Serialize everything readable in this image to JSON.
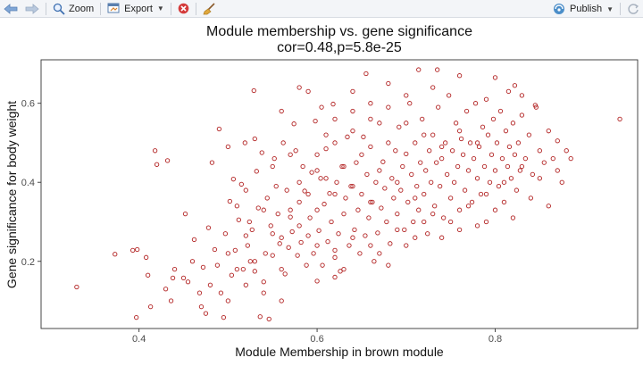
{
  "toolbar": {
    "zoom_label": "Zoom",
    "export_label": "Export",
    "publish_label": "Publish",
    "icons": [
      "back-arrow-icon",
      "forward-arrow-icon",
      "zoom-icon",
      "export-icon",
      "remove-plot-icon",
      "clear-plots-broom-icon",
      "publish-icon",
      "refresh-icon"
    ]
  },
  "colors": {
    "points": "#b22222",
    "panel_border": "#333333",
    "ticks": "#4d4d4d"
  },
  "chart_data": {
    "type": "scatter",
    "title": "Module membership vs. gene significance",
    "subtitle": "cor=0.48,p=5.8e-25",
    "xlabel": "Module Membership in brown module",
    "ylabel": "Gene significance for body weight",
    "xlim": [
      0.29,
      0.96
    ],
    "ylim": [
      0.03,
      0.71
    ],
    "xticks": [
      0.4,
      0.6,
      0.8
    ],
    "xtick_labels": [
      "0.4",
      "0.6",
      "0.8"
    ],
    "yticks": [
      0.2,
      0.4,
      0.6
    ],
    "ytick_labels": [
      "0.2",
      "0.4",
      "0.6"
    ],
    "grid": false,
    "marker": "open-circle",
    "points": [
      [
        0.33,
        0.135
      ],
      [
        0.373,
        0.218
      ],
      [
        0.393,
        0.228
      ],
      [
        0.397,
        0.058
      ],
      [
        0.398,
        0.23
      ],
      [
        0.408,
        0.21
      ],
      [
        0.41,
        0.165
      ],
      [
        0.413,
        0.085
      ],
      [
        0.418,
        0.48
      ],
      [
        0.42,
        0.445
      ],
      [
        0.43,
        0.13
      ],
      [
        0.432,
        0.455
      ],
      [
        0.436,
        0.1
      ],
      [
        0.438,
        0.158
      ],
      [
        0.45,
        0.158
      ],
      [
        0.452,
        0.32
      ],
      [
        0.455,
        0.148
      ],
      [
        0.462,
        0.255
      ],
      [
        0.468,
        0.12
      ],
      [
        0.47,
        0.085
      ],
      [
        0.472,
        0.185
      ],
      [
        0.475,
        0.068
      ],
      [
        0.478,
        0.285
      ],
      [
        0.482,
        0.45
      ],
      [
        0.485,
        0.23
      ],
      [
        0.488,
        0.19
      ],
      [
        0.49,
        0.535
      ],
      [
        0.492,
        0.12
      ],
      [
        0.495,
        0.058
      ],
      [
        0.497,
        0.27
      ],
      [
        0.5,
        0.49
      ],
      [
        0.502,
        0.352
      ],
      [
        0.504,
        0.165
      ],
      [
        0.506,
        0.408
      ],
      [
        0.508,
        0.228
      ],
      [
        0.51,
        0.34
      ],
      [
        0.512,
        0.305
      ],
      [
        0.515,
        0.395
      ],
      [
        0.517,
        0.18
      ],
      [
        0.519,
        0.5
      ],
      [
        0.52,
        0.265
      ],
      [
        0.522,
        0.24
      ],
      [
        0.524,
        0.3
      ],
      [
        0.525,
        0.2
      ],
      [
        0.527,
        0.28
      ],
      [
        0.529,
        0.632
      ],
      [
        0.53,
        0.175
      ],
      [
        0.532,
        0.428
      ],
      [
        0.534,
        0.335
      ],
      [
        0.536,
        0.06
      ],
      [
        0.538,
        0.475
      ],
      [
        0.54,
        0.148
      ],
      [
        0.542,
        0.22
      ],
      [
        0.544,
        0.36
      ],
      [
        0.546,
        0.054
      ],
      [
        0.548,
        0.29
      ],
      [
        0.55,
        0.215
      ],
      [
        0.552,
        0.46
      ],
      [
        0.554,
        0.39
      ],
      [
        0.556,
        0.32
      ],
      [
        0.558,
        0.245
      ],
      [
        0.56,
        0.18
      ],
      [
        0.562,
        0.5
      ],
      [
        0.564,
        0.168
      ],
      [
        0.566,
        0.38
      ],
      [
        0.568,
        0.235
      ],
      [
        0.57,
        0.312
      ],
      [
        0.572,
        0.275
      ],
      [
        0.574,
        0.548
      ],
      [
        0.576,
        0.48
      ],
      [
        0.578,
        0.215
      ],
      [
        0.58,
        0.35
      ],
      [
        0.582,
        0.248
      ],
      [
        0.584,
        0.44
      ],
      [
        0.586,
        0.378
      ],
      [
        0.588,
        0.19
      ],
      [
        0.59,
        0.265
      ],
      [
        0.592,
        0.31
      ],
      [
        0.594,
        0.425
      ],
      [
        0.596,
        0.22
      ],
      [
        0.598,
        0.555
      ],
      [
        0.6,
        0.33
      ],
      [
        0.602,
        0.278
      ],
      [
        0.604,
        0.41
      ],
      [
        0.606,
        0.19
      ],
      [
        0.608,
        0.345
      ],
      [
        0.61,
        0.485
      ],
      [
        0.612,
        0.25
      ],
      [
        0.614,
        0.372
      ],
      [
        0.616,
        0.3
      ],
      [
        0.618,
        0.598
      ],
      [
        0.62,
        0.228
      ],
      [
        0.622,
        0.4
      ],
      [
        0.624,
        0.27
      ],
      [
        0.626,
        0.175
      ],
      [
        0.628,
        0.44
      ],
      [
        0.63,
        0.32
      ],
      [
        0.632,
        0.36
      ],
      [
        0.634,
        0.515
      ],
      [
        0.636,
        0.24
      ],
      [
        0.638,
        0.39
      ],
      [
        0.64,
        0.58
      ],
      [
        0.642,
        0.28
      ],
      [
        0.644,
        0.45
      ],
      [
        0.646,
        0.33
      ],
      [
        0.648,
        0.22
      ],
      [
        0.65,
        0.37
      ],
      [
        0.652,
        0.515
      ],
      [
        0.654,
        0.265
      ],
      [
        0.656,
        0.42
      ],
      [
        0.658,
        0.31
      ],
      [
        0.66,
        0.49
      ],
      [
        0.662,
        0.35
      ],
      [
        0.664,
        0.2
      ],
      [
        0.666,
        0.4
      ],
      [
        0.668,
        0.272
      ],
      [
        0.67,
        0.55
      ],
      [
        0.672,
        0.335
      ],
      [
        0.674,
        0.452
      ],
      [
        0.676,
        0.385
      ],
      [
        0.678,
        0.3
      ],
      [
        0.68,
        0.5
      ],
      [
        0.682,
        0.245
      ],
      [
        0.684,
        0.41
      ],
      [
        0.686,
        0.36
      ],
      [
        0.688,
        0.48
      ],
      [
        0.69,
        0.32
      ],
      [
        0.692,
        0.54
      ],
      [
        0.694,
        0.38
      ],
      [
        0.696,
        0.44
      ],
      [
        0.698,
        0.28
      ],
      [
        0.7,
        0.472
      ],
      [
        0.702,
        0.35
      ],
      [
        0.704,
        0.6
      ],
      [
        0.706,
        0.42
      ],
      [
        0.708,
        0.3
      ],
      [
        0.71,
        0.5
      ],
      [
        0.712,
        0.39
      ],
      [
        0.714,
        0.33
      ],
      [
        0.716,
        0.45
      ],
      [
        0.718,
        0.56
      ],
      [
        0.72,
        0.37
      ],
      [
        0.722,
        0.43
      ],
      [
        0.724,
        0.27
      ],
      [
        0.726,
        0.48
      ],
      [
        0.728,
        0.4
      ],
      [
        0.73,
        0.52
      ],
      [
        0.732,
        0.34
      ],
      [
        0.734,
        0.45
      ],
      [
        0.736,
        0.59
      ],
      [
        0.738,
        0.39
      ],
      [
        0.74,
        0.46
      ],
      [
        0.742,
        0.31
      ],
      [
        0.744,
        0.5
      ],
      [
        0.746,
        0.42
      ],
      [
        0.748,
        0.62
      ],
      [
        0.75,
        0.36
      ],
      [
        0.752,
        0.48
      ],
      [
        0.754,
        0.4
      ],
      [
        0.756,
        0.55
      ],
      [
        0.758,
        0.44
      ],
      [
        0.76,
        0.33
      ],
      [
        0.762,
        0.51
      ],
      [
        0.764,
        0.47
      ],
      [
        0.766,
        0.38
      ],
      [
        0.768,
        0.58
      ],
      [
        0.77,
        0.43
      ],
      [
        0.772,
        0.5
      ],
      [
        0.774,
        0.35
      ],
      [
        0.776,
        0.46
      ],
      [
        0.778,
        0.6
      ],
      [
        0.78,
        0.41
      ],
      [
        0.782,
        0.49
      ],
      [
        0.784,
        0.37
      ],
      [
        0.786,
        0.54
      ],
      [
        0.788,
        0.44
      ],
      [
        0.79,
        0.3
      ],
      [
        0.792,
        0.52
      ],
      [
        0.794,
        0.4
      ],
      [
        0.796,
        0.47
      ],
      [
        0.798,
        0.56
      ],
      [
        0.8,
        0.43
      ],
      [
        0.802,
        0.5
      ],
      [
        0.804,
        0.39
      ],
      [
        0.806,
        0.58
      ],
      [
        0.808,
        0.46
      ],
      [
        0.81,
        0.35
      ],
      [
        0.812,
        0.53
      ],
      [
        0.814,
        0.44
      ],
      [
        0.816,
        0.49
      ],
      [
        0.818,
        0.41
      ],
      [
        0.82,
        0.55
      ],
      [
        0.822,
        0.47
      ],
      [
        0.824,
        0.38
      ],
      [
        0.826,
        0.5
      ],
      [
        0.828,
        0.43
      ],
      [
        0.83,
        0.57
      ],
      [
        0.834,
        0.46
      ],
      [
        0.838,
        0.52
      ],
      [
        0.842,
        0.42
      ],
      [
        0.846,
        0.59
      ],
      [
        0.85,
        0.48
      ],
      [
        0.855,
        0.45
      ],
      [
        0.86,
        0.53
      ],
      [
        0.865,
        0.46
      ],
      [
        0.87,
        0.505
      ],
      [
        0.875,
        0.4
      ],
      [
        0.88,
        0.48
      ],
      [
        0.885,
        0.46
      ],
      [
        0.94,
        0.56
      ],
      [
        0.655,
        0.675
      ],
      [
        0.714,
        0.685
      ],
      [
        0.735,
        0.685
      ],
      [
        0.8,
        0.665
      ],
      [
        0.822,
        0.645
      ],
      [
        0.64,
        0.63
      ],
      [
        0.59,
        0.63
      ],
      [
        0.845,
        0.595
      ],
      [
        0.83,
        0.62
      ],
      [
        0.605,
        0.59
      ],
      [
        0.815,
        0.63
      ],
      [
        0.68,
        0.65
      ],
      [
        0.76,
        0.67
      ],
      [
        0.7,
        0.62
      ],
      [
        0.58,
        0.64
      ],
      [
        0.66,
        0.6
      ],
      [
        0.73,
        0.64
      ],
      [
        0.79,
        0.61
      ],
      [
        0.62,
        0.56
      ],
      [
        0.56,
        0.58
      ],
      [
        0.61,
        0.52
      ],
      [
        0.57,
        0.47
      ],
      [
        0.55,
        0.44
      ],
      [
        0.53,
        0.51
      ],
      [
        0.52,
        0.38
      ],
      [
        0.54,
        0.33
      ],
      [
        0.56,
        0.26
      ],
      [
        0.58,
        0.29
      ],
      [
        0.6,
        0.24
      ],
      [
        0.62,
        0.21
      ],
      [
        0.63,
        0.18
      ],
      [
        0.64,
        0.26
      ],
      [
        0.66,
        0.24
      ],
      [
        0.67,
        0.22
      ],
      [
        0.68,
        0.19
      ],
      [
        0.69,
        0.28
      ],
      [
        0.7,
        0.24
      ],
      [
        0.71,
        0.26
      ],
      [
        0.72,
        0.3
      ],
      [
        0.74,
        0.26
      ],
      [
        0.76,
        0.28
      ],
      [
        0.78,
        0.29
      ],
      [
        0.8,
        0.33
      ],
      [
        0.82,
        0.31
      ],
      [
        0.84,
        0.36
      ],
      [
        0.86,
        0.34
      ],
      [
        0.52,
        0.14
      ],
      [
        0.54,
        0.12
      ],
      [
        0.56,
        0.1
      ],
      [
        0.6,
        0.15
      ],
      [
        0.62,
        0.16
      ],
      [
        0.5,
        0.1
      ],
      [
        0.48,
        0.14
      ],
      [
        0.46,
        0.2
      ],
      [
        0.44,
        0.18
      ],
      [
        0.5,
        0.22
      ],
      [
        0.51,
        0.18
      ],
      [
        0.53,
        0.2
      ],
      [
        0.55,
        0.27
      ],
      [
        0.57,
        0.33
      ],
      [
        0.59,
        0.37
      ],
      [
        0.61,
        0.41
      ],
      [
        0.63,
        0.44
      ],
      [
        0.65,
        0.47
      ],
      [
        0.67,
        0.43
      ],
      [
        0.69,
        0.4
      ],
      [
        0.71,
        0.36
      ],
      [
        0.73,
        0.32
      ],
      [
        0.75,
        0.3
      ],
      [
        0.77,
        0.34
      ],
      [
        0.79,
        0.37
      ],
      [
        0.81,
        0.4
      ],
      [
        0.83,
        0.44
      ],
      [
        0.85,
        0.41
      ],
      [
        0.87,
        0.43
      ],
      [
        0.6,
        0.47
      ],
      [
        0.62,
        0.5
      ],
      [
        0.64,
        0.53
      ],
      [
        0.66,
        0.56
      ],
      [
        0.68,
        0.59
      ],
      [
        0.7,
        0.55
      ],
      [
        0.72,
        0.52
      ],
      [
        0.74,
        0.49
      ],
      [
        0.76,
        0.53
      ],
      [
        0.78,
        0.5
      ],
      [
        0.58,
        0.4
      ],
      [
        0.6,
        0.43
      ],
      [
        0.62,
        0.37
      ],
      [
        0.64,
        0.39
      ],
      [
        0.66,
        0.35
      ]
    ]
  }
}
